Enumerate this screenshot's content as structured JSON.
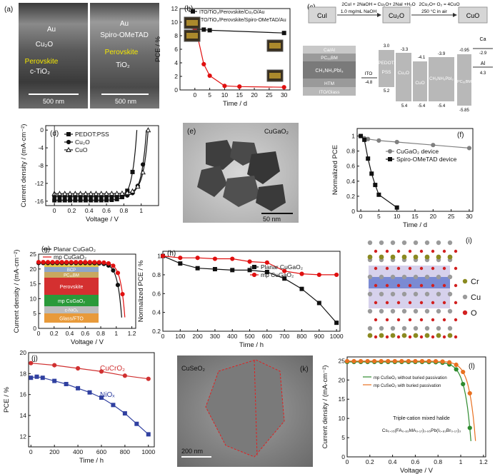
{
  "panel_labels": [
    "(a)",
    "(b)",
    "(c)",
    "(d)",
    "(e)",
    "(f)",
    "(g)",
    "(h)",
    "(i)",
    "(j)",
    "(k)",
    "(l)"
  ],
  "panel_a": {
    "left": {
      "metal": "Au",
      "htm": "Cu₂O",
      "absorber": "Perovskite",
      "etl": "c-TiO₂",
      "scale": "500 nm"
    },
    "right": {
      "metal": "Au",
      "htm": "Spiro-OMeTAD",
      "absorber": "Perovskite",
      "etl": "TiO₂",
      "scale": "500 nm"
    },
    "colors": {
      "absorber_text": "#f5e800",
      "text": "#ffffff"
    }
  },
  "panel_c": {
    "reaction": {
      "reactant": "CuI",
      "intermediate": "Cu₂O",
      "product": "CuO",
      "step1": "2CuI + 2NaOH = Cu₂O+ 2NaI +H₂O",
      "step1b": "1.0 mg/mL NaOH",
      "step2": "2Cu₂O+ O₂ = 4CuO",
      "step2b": "250 °C in air"
    },
    "stack": [
      "Ca/Al",
      "PC₆₁BM",
      "CH₃NH₃PbI₃",
      "HTM",
      "ITO/Glass"
    ],
    "levels": {
      "ITO": {
        "label": "ITO",
        "low": "-4.8"
      },
      "PEDOT": {
        "label": "PEDOT:\nPSS",
        "top": "3.0",
        "bottom": "5.2"
      },
      "Cu2O": {
        "label": "Cu₂O",
        "top": "-3.3",
        "bottom": "5.4"
      },
      "CuO": {
        "label": "CuO",
        "top": "-4.1",
        "bottom": "-5.4"
      },
      "MAPbI3": {
        "label": "CH₃NH₃PbI₃",
        "top": "-3.9",
        "bottom": "-5.4"
      },
      "PCBM": {
        "label": "PC₆₁BM",
        "top": "-0.95",
        "bottom": "-5.85"
      },
      "Ca": {
        "label": "Ca",
        "level": "-2.9"
      },
      "Al": {
        "label": "Al",
        "level": "4.3"
      }
    }
  },
  "panel_e": {
    "label": "CuGaO₂",
    "scale": "50 nm"
  },
  "panel_g_inset": [
    "Au",
    "BCP",
    "PC₆₁BM",
    "Perovskite",
    "mp CuGaO₂",
    "c-NiOₓ",
    "Glass/FTO"
  ],
  "panel_i": {
    "legend": [
      {
        "label": "Cr",
        "color": "#8a8a20"
      },
      {
        "label": "Cu",
        "color": "#9a9a9a"
      },
      {
        "label": "O",
        "color": "#d22020"
      }
    ]
  },
  "panel_k": {
    "label": "CuSeO₂",
    "scale": "200 nm"
  },
  "chart_data": [
    {
      "id": "b",
      "type": "line",
      "ylabel": "PCE / %",
      "xlabel": "Time / d",
      "xlim": [
        -5,
        32
      ],
      "ylim": [
        0,
        12
      ],
      "xticks": [
        0,
        5,
        10,
        15,
        20,
        25,
        30
      ],
      "yticks": [
        0,
        2,
        4,
        6,
        8,
        10,
        12
      ],
      "series": [
        {
          "name": "ITO/TiO₂/Perovskite/Cu₂O/Au",
          "color": "#111111",
          "marker": "square",
          "x": [
            -1,
            0,
            1,
            3,
            5,
            30
          ],
          "y": [
            9.5,
            9.0,
            9.0,
            8.9,
            8.8,
            8.4
          ]
        },
        {
          "name": "ITO/TiO₂/Perovskite/Spiro-OMeTAD/Au",
          "color": "#e01010",
          "marker": "circle",
          "x": [
            -1,
            0,
            1,
            3,
            5,
            10,
            15,
            30
          ],
          "y": [
            9.3,
            9.0,
            7.7,
            3.8,
            2.1,
            0.6,
            0.5,
            0.4
          ]
        }
      ]
    },
    {
      "id": "d",
      "type": "line",
      "ylabel": "Current density / (mA·cm⁻²)",
      "xlabel": "Voltage / V",
      "xlim": [
        -0.1,
        1.2
      ],
      "ylim": [
        -17,
        1
      ],
      "xticks": [
        0,
        0.2,
        0.4,
        0.6,
        0.8,
        1.0
      ],
      "yticks": [
        0,
        -4,
        -8,
        -12,
        -16
      ],
      "series": [
        {
          "name": "PEDOT:PSS",
          "color": "#111111",
          "marker": "square",
          "jsc": -15.8,
          "voc": 0.95
        },
        {
          "name": "Cu₂O",
          "color": "#111111",
          "marker": "circle",
          "jsc": -15.0,
          "voc": 1.06
        },
        {
          "name": "CuO",
          "color": "#111111",
          "marker": "triangle",
          "jsc": -14.3,
          "voc": 1.08
        }
      ]
    },
    {
      "id": "f",
      "type": "line",
      "ylabel": "Normalized PCE",
      "xlabel": "Time / d",
      "xlim": [
        -1,
        31
      ],
      "ylim": [
        0,
        1.1
      ],
      "xticks": [
        0,
        5,
        10,
        15,
        20,
        25,
        30
      ],
      "yticks": [
        0,
        0.2,
        0.4,
        0.6,
        0.8,
        1.0
      ],
      "series": [
        {
          "name": "CuGaO₂ device",
          "color": "#808080",
          "marker": "circle",
          "x": [
            0,
            1,
            2,
            5,
            10,
            20,
            30
          ],
          "y": [
            1.0,
            0.97,
            0.96,
            0.94,
            0.92,
            0.88,
            0.84
          ]
        },
        {
          "name": "Spiro-OMeTAD device",
          "color": "#111111",
          "marker": "square",
          "x": [
            0,
            1,
            2,
            3,
            4,
            5,
            10
          ],
          "y": [
            1.0,
            0.95,
            0.7,
            0.5,
            0.35,
            0.22,
            0.05
          ]
        }
      ]
    },
    {
      "id": "g",
      "type": "line",
      "ylabel": "Current density / (mA·cm⁻²)",
      "xlabel": "Voltage / V",
      "xlim": [
        0,
        1.25
      ],
      "ylim": [
        0,
        25
      ],
      "xticks": [
        0,
        0.2,
        0.4,
        0.6,
        0.8,
        1.0,
        1.2
      ],
      "yticks": [
        0,
        5,
        10,
        15,
        20,
        25
      ],
      "series": [
        {
          "name": "Planar CuGaO₂",
          "color": "#111111",
          "jsc": 22.0,
          "voc": 1.08
        },
        {
          "name": "mp CuGaO₂",
          "color": "#e01010",
          "jsc": 22.3,
          "voc": 1.12
        }
      ]
    },
    {
      "id": "h",
      "type": "line",
      "ylabel": "Normalized PCE / %",
      "xlabel": "Time / h",
      "xlim": [
        0,
        1020
      ],
      "ylim": [
        0.2,
        1.05
      ],
      "xticks": [
        0,
        100,
        200,
        300,
        400,
        500,
        600,
        700,
        800,
        900,
        1000
      ],
      "yticks": [
        0.2,
        0.4,
        0.6,
        0.8,
        1.0
      ],
      "series": [
        {
          "name": "Planar CuGaO₂",
          "color": "#111111",
          "marker": "square",
          "x": [
            0,
            100,
            200,
            300,
            400,
            500,
            600,
            700,
            800,
            900,
            1000
          ],
          "y": [
            1.0,
            0.92,
            0.87,
            0.86,
            0.85,
            0.85,
            0.83,
            0.76,
            0.65,
            0.5,
            0.29
          ]
        },
        {
          "name": "mp CuGaO₂",
          "color": "#e01010",
          "marker": "circle",
          "x": [
            0,
            100,
            200,
            300,
            400,
            500,
            600,
            700,
            800,
            900,
            1000
          ],
          "y": [
            1.0,
            0.98,
            0.98,
            0.97,
            0.97,
            0.94,
            0.93,
            0.84,
            0.81,
            0.8,
            0.8
          ]
        }
      ]
    },
    {
      "id": "j",
      "type": "line",
      "ylabel": "PCE / %",
      "xlabel": "Time / h",
      "xlim": [
        -20,
        1050
      ],
      "ylim": [
        11,
        20
      ],
      "xticks": [
        0,
        200,
        400,
        600,
        800,
        1000
      ],
      "yticks": [
        12,
        14,
        16,
        18,
        20
      ],
      "series": [
        {
          "name": "CuCrO₂",
          "color": "#d03030",
          "marker": "circle",
          "x": [
            0,
            200,
            400,
            600,
            800,
            1000
          ],
          "y": [
            19.0,
            18.8,
            18.5,
            18.2,
            17.8,
            17.5
          ]
        },
        {
          "name": "NiOₓ",
          "color": "#3040a0",
          "marker": "square",
          "x": [
            0,
            50,
            100,
            200,
            300,
            400,
            500,
            600,
            700,
            800,
            900,
            1000
          ],
          "y": [
            17.6,
            17.7,
            17.6,
            17.3,
            17.0,
            16.6,
            16.2,
            15.7,
            15.0,
            14.2,
            13.2,
            12.2
          ]
        }
      ]
    },
    {
      "id": "l",
      "type": "line",
      "ylabel": "Current density / (mA·cm⁻²)",
      "xlabel": "Voltage / V",
      "xlim": [
        0,
        1.22
      ],
      "ylim": [
        0,
        26
      ],
      "xticks": [
        0.0,
        0.2,
        0.4,
        0.6,
        0.8,
        1.0,
        1.2
      ],
      "yticks": [
        0,
        5,
        10,
        15,
        20,
        25
      ],
      "annotation_1": "Triple-cation mixed halide",
      "annotation_2": "Cs₀.₀₅(FA₀.₈₃MA₀.₁₇)₀.₉₅Pb(I₀.₈₃Br₀.₁₇)₃",
      "series": [
        {
          "name": "mp CuSeO₂ without buried passivation",
          "color": "#2e8b2e",
          "jsc": 24.7,
          "voc": 1.1
        },
        {
          "name": "mp CuSeO₂ with buried passivation",
          "color": "#e87020",
          "jsc": 24.9,
          "voc": 1.14
        }
      ]
    }
  ]
}
